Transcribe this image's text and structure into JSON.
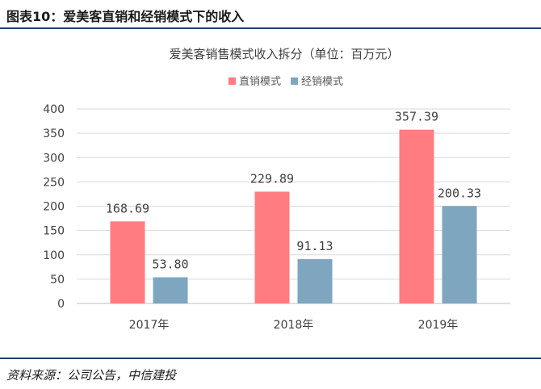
{
  "figure": {
    "label": "图表10：",
    "heading": "爱美客直销和经销模式下的收入",
    "source": "资料来源：公司公告，中信建投"
  },
  "chart_data": {
    "type": "bar",
    "title": "爱美客销售模式收入拆分（单位：百万元）",
    "categories": [
      "2017年",
      "2018年",
      "2019年"
    ],
    "series": [
      {
        "name": "直销模式",
        "color": "#ff7c80",
        "values": [
          168.69,
          229.89,
          357.39
        ],
        "labels": [
          "168.69",
          "229.89",
          "357.39"
        ]
      },
      {
        "name": "经销模式",
        "color": "#7ea6bf",
        "values": [
          53.8,
          91.13,
          200.33
        ],
        "labels": [
          "53.80",
          "91.13",
          "200.33"
        ]
      }
    ],
    "ylim": [
      0,
      400
    ],
    "yticks": [
      0,
      50,
      100,
      150,
      200,
      250,
      300,
      350,
      400
    ],
    "grid": true,
    "legend": "top-center"
  }
}
